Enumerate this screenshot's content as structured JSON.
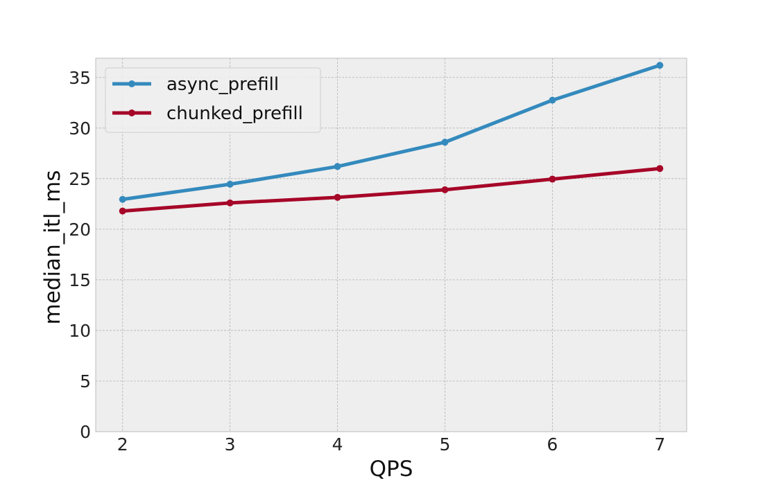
{
  "chart_data": {
    "type": "line",
    "x": [
      2,
      3,
      4,
      5,
      6,
      7
    ],
    "xlabel": "QPS",
    "ylabel": "median_itl_ms",
    "xlim": [
      1.75,
      7.25
    ],
    "ylim": [
      0,
      36.9
    ],
    "xticks": [
      "2",
      "3",
      "4",
      "5",
      "6",
      "7"
    ],
    "yticks": [
      "0",
      "5",
      "10",
      "15",
      "20",
      "25",
      "30",
      "35"
    ],
    "grid": true,
    "legend_placement": "upper-left",
    "plot_background": "#EEEEEE",
    "series": [
      {
        "name": "async_prefill",
        "color": "#348ABD",
        "values": [
          22.95,
          24.45,
          26.2,
          28.6,
          32.75,
          36.2
        ]
      },
      {
        "name": "chunked_prefill",
        "color": "#A60628",
        "values": [
          21.8,
          22.6,
          23.15,
          23.9,
          24.95,
          26.0
        ]
      }
    ]
  }
}
